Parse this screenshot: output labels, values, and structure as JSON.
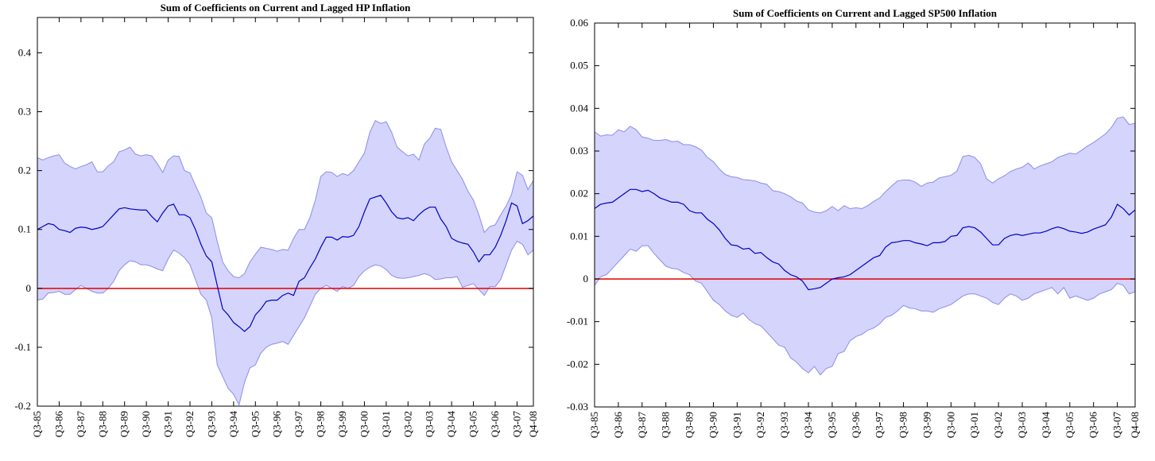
{
  "chart_data": [
    {
      "type": "line",
      "title": "Sum of Coefficients on Current and Lagged HP Inflation",
      "categories": [
        "Q3-85",
        null,
        null,
        null,
        "Q3-86",
        null,
        null,
        null,
        "Q3-87",
        null,
        null,
        null,
        "Q3-88",
        null,
        null,
        null,
        "Q3-89",
        null,
        null,
        null,
        "Q3-90",
        null,
        null,
        null,
        "Q3-91",
        null,
        null,
        null,
        "Q3-92",
        null,
        null,
        null,
        "Q3-93",
        null,
        null,
        null,
        "Q3-94",
        null,
        null,
        null,
        "Q3-95",
        null,
        null,
        null,
        "Q3-96",
        null,
        null,
        null,
        "Q3-97",
        null,
        null,
        null,
        "Q3-98",
        null,
        null,
        null,
        "Q3-99",
        null,
        null,
        null,
        "Q3-00",
        null,
        null,
        null,
        "Q3-01",
        null,
        null,
        null,
        "Q3-02",
        null,
        null,
        null,
        "Q3-03",
        null,
        null,
        null,
        "Q3-04",
        null,
        null,
        null,
        "Q3-05",
        null,
        null,
        null,
        "Q3-06",
        null,
        null,
        null,
        "Q3-07",
        null,
        null,
        "Q4-08"
      ],
      "values": [
        0.1,
        0.105,
        0.11,
        0.108,
        0.1,
        0.098,
        0.095,
        0.102,
        0.104,
        0.103,
        0.1,
        0.102,
        0.105,
        0.115,
        0.125,
        0.135,
        0.137,
        0.135,
        0.134,
        0.133,
        0.133,
        0.122,
        0.113,
        0.128,
        0.14,
        0.143,
        0.125,
        0.125,
        0.12,
        0.1,
        0.075,
        0.055,
        0.045,
        0.005,
        -0.035,
        -0.045,
        -0.058,
        -0.065,
        -0.073,
        -0.065,
        -0.045,
        -0.035,
        -0.022,
        -0.02,
        -0.02,
        -0.012,
        -0.008,
        -0.012,
        0.012,
        0.018,
        0.035,
        0.05,
        0.07,
        0.087,
        0.087,
        0.082,
        0.088,
        0.087,
        0.09,
        0.105,
        0.13,
        0.152,
        0.155,
        0.158,
        0.145,
        0.13,
        0.12,
        0.118,
        0.12,
        0.115,
        0.125,
        0.133,
        0.138,
        0.138,
        0.118,
        0.105,
        0.085,
        0.08,
        0.077,
        0.075,
        0.062,
        0.045,
        0.057,
        0.057,
        0.07,
        0.09,
        0.115,
        0.145,
        0.14,
        0.11,
        0.115,
        0.123
      ],
      "band": {
        "upper": [
          0.222,
          0.218,
          0.222,
          0.225,
          0.227,
          0.213,
          0.207,
          0.203,
          0.207,
          0.21,
          0.215,
          0.198,
          0.198,
          0.208,
          0.215,
          0.232,
          0.235,
          0.24,
          0.228,
          0.225,
          0.227,
          0.225,
          0.212,
          0.197,
          0.218,
          0.225,
          0.224,
          0.2,
          0.196,
          0.175,
          0.155,
          0.128,
          0.12,
          0.08,
          0.045,
          0.03,
          0.02,
          0.018,
          0.025,
          0.045,
          0.058,
          0.07,
          0.068,
          0.066,
          0.063,
          0.066,
          0.065,
          0.085,
          0.1,
          0.1,
          0.12,
          0.15,
          0.19,
          0.198,
          0.197,
          0.19,
          0.195,
          0.192,
          0.2,
          0.215,
          0.23,
          0.265,
          0.285,
          0.28,
          0.283,
          0.265,
          0.24,
          0.232,
          0.225,
          0.228,
          0.218,
          0.245,
          0.255,
          0.272,
          0.27,
          0.24,
          0.215,
          0.2,
          0.185,
          0.165,
          0.15,
          0.125,
          0.095,
          0.105,
          0.108,
          0.125,
          0.14,
          0.16,
          0.198,
          0.192,
          0.168,
          0.183
        ],
        "lower": [
          -0.02,
          -0.018,
          -0.008,
          -0.007,
          -0.005,
          -0.01,
          -0.01,
          -0.002,
          0.005,
          0.0,
          -0.005,
          -0.008,
          -0.008,
          0.0,
          0.012,
          0.03,
          0.04,
          0.047,
          0.045,
          0.04,
          0.04,
          0.037,
          0.033,
          0.03,
          0.05,
          0.065,
          0.06,
          0.052,
          0.04,
          0.015,
          -0.01,
          -0.02,
          -0.05,
          -0.13,
          -0.15,
          -0.17,
          -0.18,
          -0.198,
          -0.16,
          -0.135,
          -0.13,
          -0.11,
          -0.1,
          -0.095,
          -0.093,
          -0.09,
          -0.095,
          -0.08,
          -0.065,
          -0.05,
          -0.03,
          -0.01,
          0.0,
          0.005,
          0.0,
          -0.005,
          0.003,
          0.0,
          0.005,
          0.02,
          0.03,
          0.036,
          0.04,
          0.038,
          0.032,
          0.022,
          0.018,
          0.017,
          0.018,
          0.02,
          0.022,
          0.025,
          0.022,
          0.015,
          0.016,
          0.018,
          0.018,
          0.02,
          0.002,
          0.005,
          0.008,
          -0.002,
          -0.012,
          0.003,
          0.003,
          0.015,
          0.04,
          0.065,
          0.08,
          0.075,
          0.057,
          0.065
        ]
      },
      "color": "#0000c8",
      "band_color": "#d4d4fc",
      "band_edge_color": "#8c8cec",
      "reference_line": 0,
      "reference_color": "#e00000",
      "ylim": [
        -0.2,
        0.46
      ],
      "yticks": [
        -0.2,
        -0.1,
        0,
        0.1,
        0.2,
        0.3,
        0.4
      ]
    },
    {
      "type": "line",
      "title": "Sum of Coefficients on Current and Lagged SP500 Inflation",
      "categories": [
        "Q3-85",
        null,
        null,
        null,
        "Q3-86",
        null,
        null,
        null,
        "Q3-87",
        null,
        null,
        null,
        "Q3-88",
        null,
        null,
        null,
        "Q3-89",
        null,
        null,
        null,
        "Q3-90",
        null,
        null,
        null,
        "Q3-91",
        null,
        null,
        null,
        "Q3-92",
        null,
        null,
        null,
        "Q3-93",
        null,
        null,
        null,
        "Q3-94",
        null,
        null,
        null,
        "Q3-95",
        null,
        null,
        null,
        "Q3-96",
        null,
        null,
        null,
        "Q3-97",
        null,
        null,
        null,
        "Q3-98",
        null,
        null,
        null,
        "Q3-99",
        null,
        null,
        null,
        "Q3-00",
        null,
        null,
        null,
        "Q3-01",
        null,
        null,
        null,
        "Q3-02",
        null,
        null,
        null,
        "Q3-03",
        null,
        null,
        null,
        "Q3-04",
        null,
        null,
        null,
        "Q3-05",
        null,
        null,
        null,
        "Q3-06",
        null,
        null,
        null,
        "Q3-07",
        null,
        null,
        "Q4-08"
      ],
      "values": [
        0.0165,
        0.0175,
        0.0178,
        0.018,
        0.019,
        0.02,
        0.021,
        0.021,
        0.0205,
        0.0208,
        0.02,
        0.019,
        0.0185,
        0.018,
        0.018,
        0.0175,
        0.016,
        0.0155,
        0.0155,
        0.014,
        0.013,
        0.0115,
        0.0095,
        0.008,
        0.0078,
        0.007,
        0.0072,
        0.006,
        0.0062,
        0.005,
        0.004,
        0.0035,
        0.002,
        0.001,
        0.0005,
        -0.0005,
        -0.0025,
        -0.0023,
        -0.002,
        -0.001,
        0.0,
        0.0003,
        0.0005,
        0.001,
        0.002,
        0.003,
        0.004,
        0.005,
        0.0055,
        0.0075,
        0.0085,
        0.0087,
        0.009,
        0.009,
        0.0085,
        0.0082,
        0.0078,
        0.0085,
        0.0085,
        0.0088,
        0.01,
        0.0102,
        0.012,
        0.0123,
        0.012,
        0.011,
        0.0095,
        0.008,
        0.008,
        0.0095,
        0.0102,
        0.0105,
        0.0102,
        0.0105,
        0.0108,
        0.0108,
        0.0112,
        0.0118,
        0.0122,
        0.0118,
        0.0112,
        0.011,
        0.0107,
        0.011,
        0.0117,
        0.0122,
        0.0127,
        0.0145,
        0.0175,
        0.0165,
        0.015,
        0.0162
      ],
      "band": {
        "upper": [
          0.0345,
          0.0335,
          0.0338,
          0.0337,
          0.035,
          0.0345,
          0.0358,
          0.035,
          0.0333,
          0.033,
          0.0325,
          0.0325,
          0.0327,
          0.0322,
          0.0323,
          0.0315,
          0.0315,
          0.031,
          0.0302,
          0.0285,
          0.0275,
          0.0258,
          0.0245,
          0.024,
          0.0238,
          0.0233,
          0.0232,
          0.023,
          0.0225,
          0.0222,
          0.0207,
          0.0205,
          0.02,
          0.0193,
          0.0183,
          0.0178,
          0.0162,
          0.0157,
          0.0155,
          0.016,
          0.017,
          0.016,
          0.0172,
          0.0165,
          0.0167,
          0.0165,
          0.0172,
          0.0182,
          0.019,
          0.0205,
          0.0218,
          0.023,
          0.0232,
          0.0232,
          0.0227,
          0.0217,
          0.0225,
          0.0227,
          0.0237,
          0.024,
          0.0243,
          0.0253,
          0.0287,
          0.029,
          0.0285,
          0.027,
          0.0235,
          0.0225,
          0.0235,
          0.0242,
          0.0252,
          0.0258,
          0.0262,
          0.0272,
          0.0258,
          0.0265,
          0.027,
          0.0275,
          0.0285,
          0.029,
          0.0295,
          0.0293,
          0.0302,
          0.0312,
          0.032,
          0.033,
          0.034,
          0.0355,
          0.0377,
          0.038,
          0.0362,
          0.0365
        ],
        "lower": [
          -0.0015,
          0.0005,
          0.001,
          0.0025,
          0.004,
          0.0055,
          0.007,
          0.0065,
          0.0078,
          0.0078,
          0.006,
          0.0045,
          0.003,
          0.0025,
          0.0023,
          0.0015,
          0.001,
          -0.0005,
          -0.001,
          -0.003,
          -0.005,
          -0.006,
          -0.0075,
          -0.0085,
          -0.009,
          -0.008,
          -0.0095,
          -0.0105,
          -0.011,
          -0.0125,
          -0.014,
          -0.0155,
          -0.016,
          -0.0185,
          -0.0195,
          -0.021,
          -0.022,
          -0.0205,
          -0.0225,
          -0.021,
          -0.0205,
          -0.0175,
          -0.017,
          -0.0145,
          -0.0135,
          -0.013,
          -0.012,
          -0.0115,
          -0.0105,
          -0.009,
          -0.0085,
          -0.0075,
          -0.0062,
          -0.0068,
          -0.007,
          -0.0075,
          -0.0075,
          -0.0078,
          -0.007,
          -0.0065,
          -0.006,
          -0.005,
          -0.004,
          -0.0035,
          -0.0035,
          -0.004,
          -0.0045,
          -0.0055,
          -0.006,
          -0.0045,
          -0.0035,
          -0.004,
          -0.005,
          -0.0045,
          -0.0035,
          -0.003,
          -0.0025,
          -0.002,
          -0.0035,
          -0.002,
          -0.0045,
          -0.004,
          -0.0045,
          -0.005,
          -0.0045,
          -0.0035,
          -0.003,
          -0.0025,
          -0.001,
          -0.0015,
          -0.0035,
          -0.003
        ]
      },
      "color": "#0000c8",
      "band_color": "#d4d4fc",
      "band_edge_color": "#8c8cec",
      "reference_line": 0,
      "reference_color": "#e00000",
      "ylim": [
        -0.03,
        0.06
      ],
      "yticks": [
        -0.03,
        -0.02,
        -0.01,
        0,
        0.01,
        0.02,
        0.03,
        0.04,
        0.05,
        0.06
      ]
    }
  ]
}
